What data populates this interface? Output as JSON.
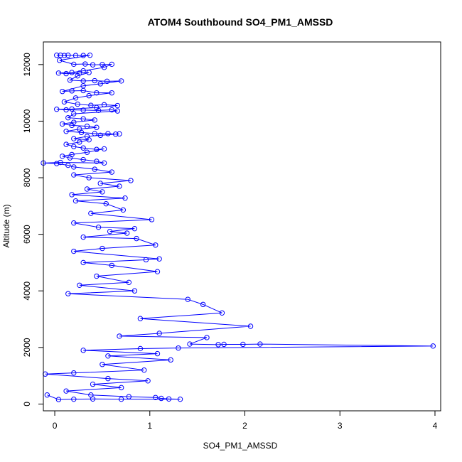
{
  "chart_data": {
    "type": "scatter",
    "title": "ATOM4 Southbound SO4_PM1_AMSSD",
    "xlabel": "SO4_PM1_AMSSD",
    "ylabel": "Altitude (m)",
    "xlim": [
      -0.12,
      4.06
    ],
    "ylim": [
      -240,
      12800
    ],
    "xticks": [
      0,
      1,
      2,
      3,
      4
    ],
    "yticks": [
      0,
      2000,
      4000,
      6000,
      8000,
      10000,
      12000
    ],
    "grid": false,
    "marker": "open-circle",
    "connected": true,
    "series": [
      {
        "color": "#0000ff",
        "points": [
          [
            0.02,
            12330
          ],
          [
            0.06,
            12330
          ],
          [
            0.1,
            12320
          ],
          [
            0.14,
            12330
          ],
          [
            0.22,
            12320
          ],
          [
            0.3,
            12320
          ],
          [
            0.37,
            12330
          ],
          [
            0.05,
            12150
          ],
          [
            0.2,
            12010
          ],
          [
            0.32,
            12020
          ],
          [
            0.4,
            11990
          ],
          [
            0.5,
            12000
          ],
          [
            0.6,
            12010
          ],
          [
            0.52,
            11900
          ],
          [
            0.3,
            11780
          ],
          [
            0.18,
            11720
          ],
          [
            0.04,
            11700
          ],
          [
            0.12,
            11680
          ],
          [
            0.26,
            11700
          ],
          [
            0.36,
            11720
          ],
          [
            0.24,
            11600
          ],
          [
            0.16,
            11450
          ],
          [
            0.3,
            11420
          ],
          [
            0.42,
            11430
          ],
          [
            0.55,
            11410
          ],
          [
            0.7,
            11420
          ],
          [
            0.48,
            11320
          ],
          [
            0.3,
            11250
          ],
          [
            0.08,
            11050
          ],
          [
            0.18,
            11070
          ],
          [
            0.3,
            11080
          ],
          [
            0.44,
            11000
          ],
          [
            0.6,
            11000
          ],
          [
            0.36,
            10900
          ],
          [
            0.22,
            10820
          ],
          [
            0.1,
            10680
          ],
          [
            0.24,
            10600
          ],
          [
            0.38,
            10560
          ],
          [
            0.52,
            10580
          ],
          [
            0.66,
            10550
          ],
          [
            0.44,
            10480
          ],
          [
            0.18,
            10430
          ],
          [
            0.02,
            10420
          ],
          [
            0.12,
            10400
          ],
          [
            0.3,
            10390
          ],
          [
            0.46,
            10380
          ],
          [
            0.6,
            10400
          ],
          [
            0.66,
            10360
          ],
          [
            0.2,
            10260
          ],
          [
            0.14,
            10120
          ],
          [
            0.3,
            10080
          ],
          [
            0.42,
            10040
          ],
          [
            0.2,
            9960
          ],
          [
            0.08,
            9900
          ],
          [
            0.18,
            9850
          ],
          [
            0.34,
            9820
          ],
          [
            0.44,
            9780
          ],
          [
            0.26,
            9720
          ],
          [
            0.12,
            9640
          ],
          [
            0.28,
            9600
          ],
          [
            0.42,
            9560
          ],
          [
            0.56,
            9560
          ],
          [
            0.64,
            9540
          ],
          [
            0.68,
            9550
          ],
          [
            0.48,
            9500
          ],
          [
            0.34,
            9460
          ],
          [
            0.2,
            9380
          ],
          [
            0.36,
            9340
          ],
          [
            0.26,
            9260
          ],
          [
            0.12,
            9180
          ],
          [
            0.2,
            9100
          ],
          [
            0.3,
            9050
          ],
          [
            0.44,
            9000
          ],
          [
            0.52,
            9020
          ],
          [
            0.34,
            8900
          ],
          [
            0.18,
            8820
          ],
          [
            0.08,
            8760
          ],
          [
            0.16,
            8700
          ],
          [
            0.3,
            8640
          ],
          [
            0.44,
            8580
          ],
          [
            0.52,
            8520
          ],
          [
            0.06,
            8540
          ],
          [
            -0.12,
            8520
          ],
          [
            0.02,
            8500
          ],
          [
            0.14,
            8440
          ],
          [
            0.2,
            8380
          ],
          [
            0.42,
            8300
          ],
          [
            0.6,
            8200
          ],
          [
            0.2,
            8100
          ],
          [
            0.36,
            8000
          ],
          [
            0.8,
            7900
          ],
          [
            0.48,
            7800
          ],
          [
            0.68,
            7700
          ],
          [
            0.34,
            7600
          ],
          [
            0.5,
            7500
          ],
          [
            0.18,
            7400
          ],
          [
            0.74,
            7280
          ],
          [
            0.22,
            7180
          ],
          [
            0.54,
            7080
          ],
          [
            0.72,
            6860
          ],
          [
            0.38,
            6740
          ],
          [
            1.02,
            6520
          ],
          [
            0.2,
            6400
          ],
          [
            0.46,
            6250
          ],
          [
            0.84,
            6200
          ],
          [
            0.58,
            6100
          ],
          [
            0.76,
            6040
          ],
          [
            0.3,
            5900
          ],
          [
            0.86,
            5850
          ],
          [
            1.06,
            5620
          ],
          [
            0.5,
            5500
          ],
          [
            0.2,
            5400
          ],
          [
            1.1,
            5130
          ],
          [
            0.96,
            5100
          ],
          [
            0.3,
            5000
          ],
          [
            0.6,
            4900
          ],
          [
            1.08,
            4680
          ],
          [
            0.44,
            4520
          ],
          [
            0.78,
            4300
          ],
          [
            0.26,
            4200
          ],
          [
            0.84,
            4000
          ],
          [
            0.14,
            3900
          ],
          [
            1.4,
            3700
          ],
          [
            1.56,
            3520
          ],
          [
            1.76,
            3220
          ],
          [
            0.9,
            3020
          ],
          [
            2.06,
            2750
          ],
          [
            1.1,
            2500
          ],
          [
            0.68,
            2400
          ],
          [
            1.6,
            2350
          ],
          [
            1.42,
            2120
          ],
          [
            1.72,
            2100
          ],
          [
            1.78,
            2110
          ],
          [
            1.98,
            2110
          ],
          [
            2.16,
            2120
          ],
          [
            3.98,
            2050
          ],
          [
            1.3,
            1980
          ],
          [
            0.9,
            1960
          ],
          [
            0.3,
            1900
          ],
          [
            1.08,
            1780
          ],
          [
            0.56,
            1700
          ],
          [
            1.22,
            1560
          ],
          [
            0.5,
            1400
          ],
          [
            0.94,
            1200
          ],
          [
            0.2,
            1100
          ],
          [
            -0.1,
            1060
          ],
          [
            0.56,
            900
          ],
          [
            0.98,
            820
          ],
          [
            0.4,
            700
          ],
          [
            0.7,
            580
          ],
          [
            0.12,
            460
          ],
          [
            0.38,
            320
          ],
          [
            0.78,
            260
          ],
          [
            1.06,
            230
          ],
          [
            1.12,
            200
          ],
          [
            1.2,
            180
          ],
          [
            1.32,
            170
          ],
          [
            0.7,
            170
          ],
          [
            0.4,
            180
          ],
          [
            0.2,
            170
          ],
          [
            0.04,
            160
          ],
          [
            -0.08,
            320
          ]
        ]
      }
    ]
  }
}
